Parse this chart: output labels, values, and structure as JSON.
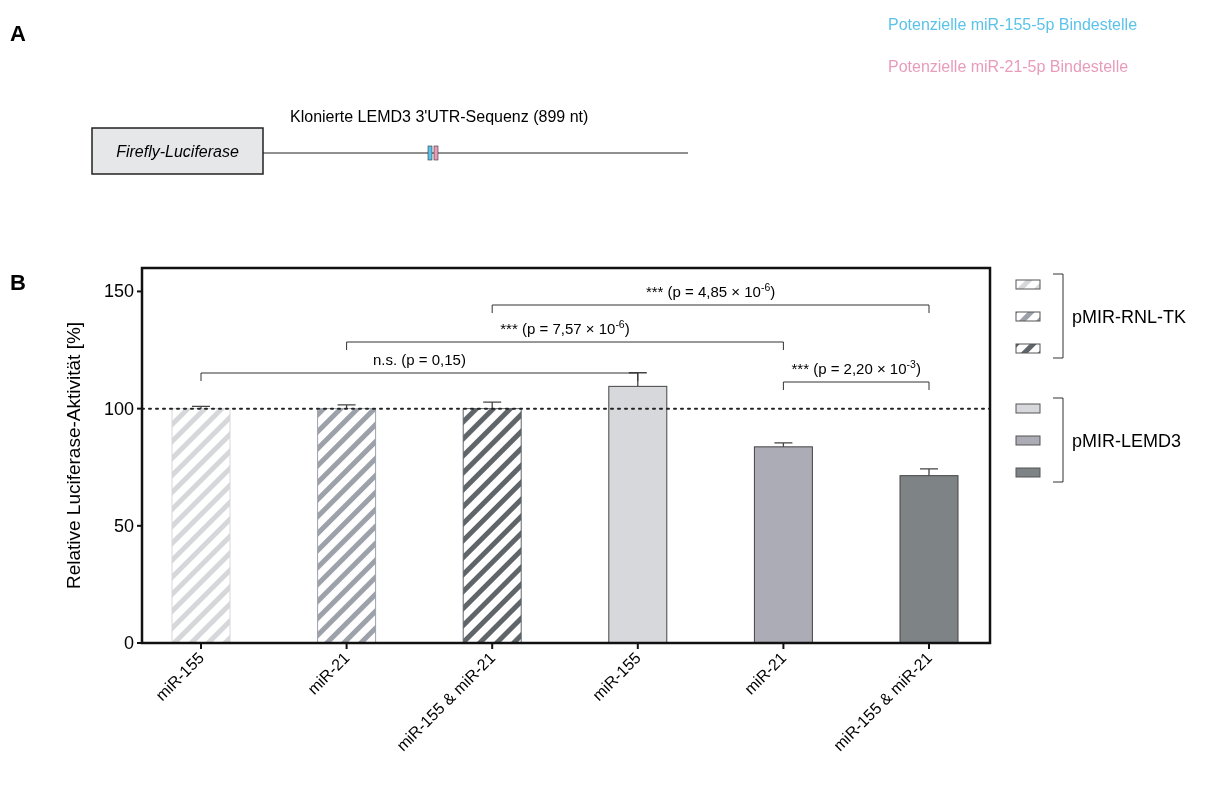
{
  "chart_data": [
    {
      "type": "other",
      "title": "Klonierte LEMD3 3'UTR-Sequenz (899 nt)",
      "annotations": [
        "A",
        "Firefly-Luciferase"
      ],
      "series": [
        {
          "name": "Potenzielle miR-155-5p Bindestelle",
          "color": "#5bc3ea"
        },
        {
          "name": "Potenzielle miR-21-5p Bindestelle",
          "color": "#e99bbb"
        }
      ]
    },
    {
      "type": "bar",
      "ylabel": "Relative Luciferase-Aktivität [%]",
      "categories": [
        "miR-155",
        "miR-21",
        "miR-155 & miR-21",
        "miR-155",
        "miR-21",
        "miR-155 & miR-21"
      ],
      "ylim": [
        0,
        160
      ],
      "yticks": [
        0,
        50,
        100,
        150
      ],
      "legend": "right",
      "ref_lines": [
        {
          "axis": "y",
          "value": 100,
          "line_style": "dotted",
          "color": "#222222"
        }
      ],
      "annotations": [
        "B",
        "*** (p = 4,85 × 10$^{-6}$)",
        "*** (p = 7,57 × 10$^{-6}$)",
        "n.s. (p = 0,15)",
        "*** (p = 2,20 × 10$^{-3}$)"
      ],
      "series": [
        {
          "name": "pMIR-RNL-TK",
          "colors": [
            "#d6d7da",
            "#9da1aa",
            "#5f6568",
            null,
            null,
            null
          ],
          "values": [
            100,
            100,
            100,
            null,
            null,
            null
          ],
          "errors": [
            1,
            1.6,
            2.8,
            null,
            null,
            null
          ]
        },
        {
          "name": "pMIR-LEMD3",
          "colors": [
            null,
            null,
            null,
            "#d7d8db",
            "#abacb5",
            "#7e8386"
          ],
          "values": [
            null,
            null,
            null,
            109.5,
            83.7,
            71.4
          ],
          "errors": [
            null,
            null,
            null,
            5.8,
            1.7,
            2.9
          ]
        }
      ]
    }
  ]
}
